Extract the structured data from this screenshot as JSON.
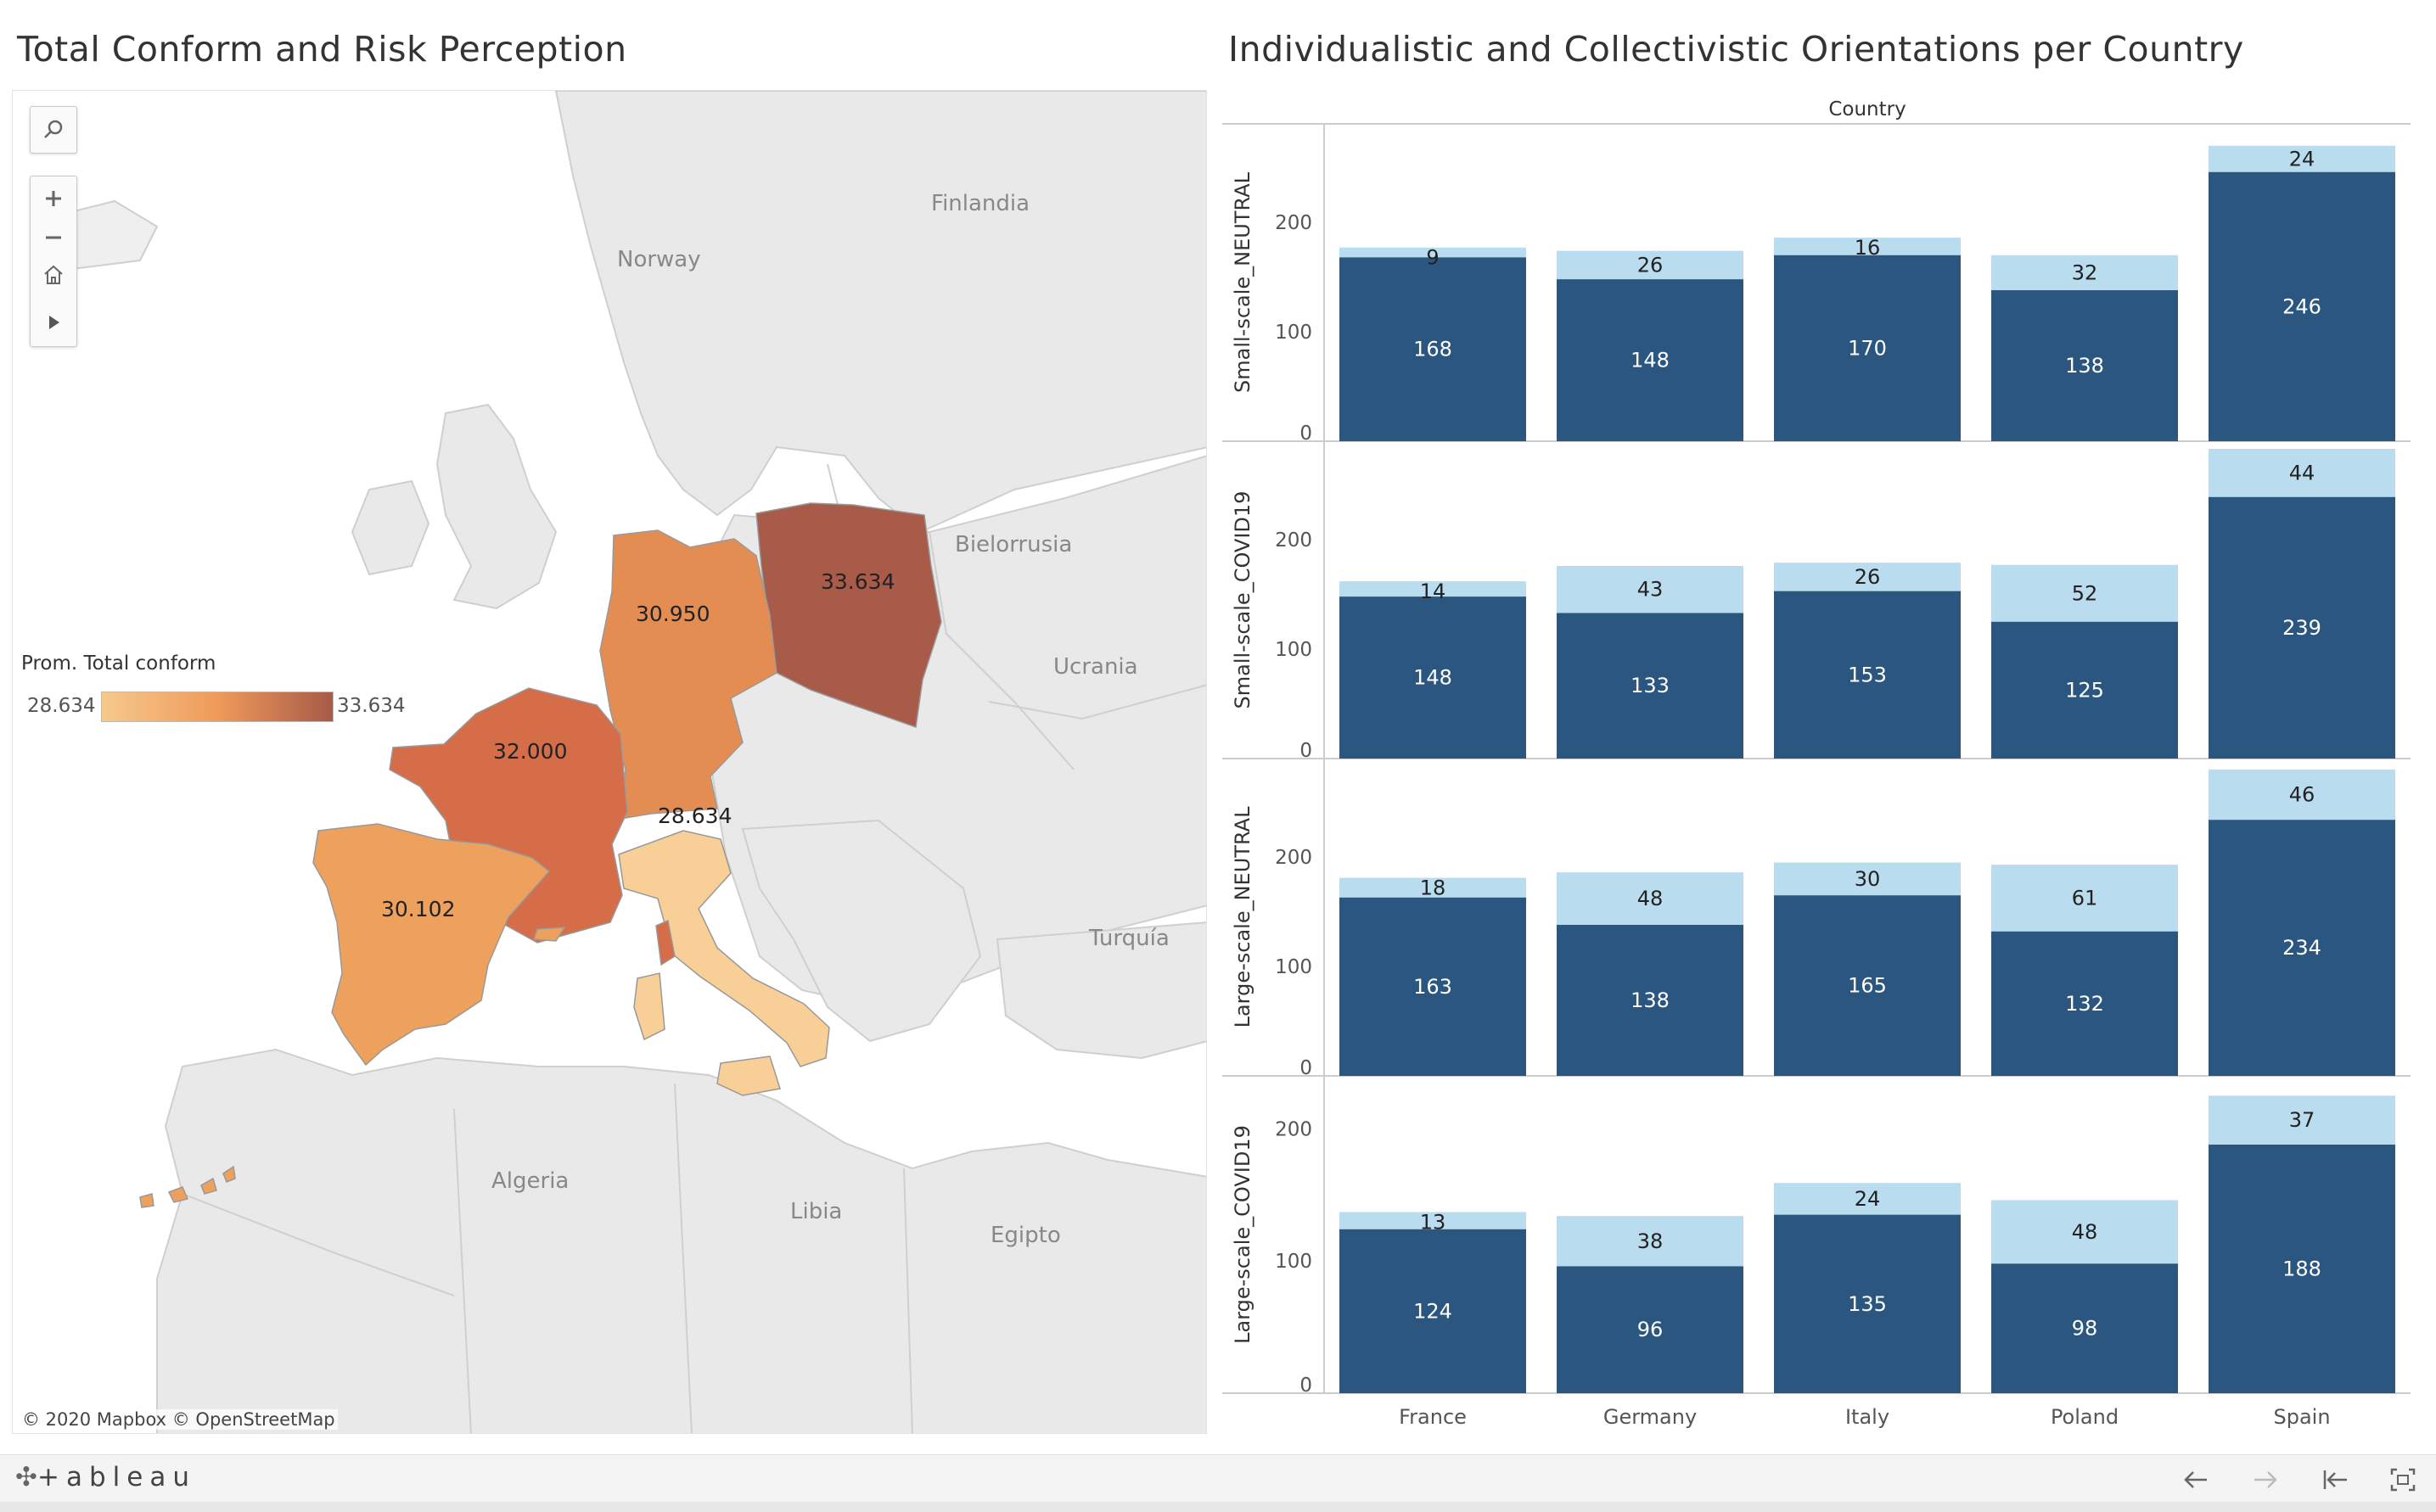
{
  "map": {
    "title": "Total Conform and Risk Perception",
    "legend": {
      "title": "Prom. Total conform",
      "min": "28.634",
      "max": "33.634",
      "color_low": "#f6c98c",
      "color_high": "#a75a48"
    },
    "place_labels": {
      "finland": "Finlandia",
      "norway": "Norway",
      "belarus": "Bielorrusia",
      "ukraine": "Ucrania",
      "turkey": "Turquía",
      "algeria": "Algeria",
      "libya": "Libia",
      "egypt": "Egipto"
    },
    "country_values": [
      {
        "country": "Poland",
        "value": "33.634",
        "color": "#a85b49"
      },
      {
        "country": "Germany",
        "value": "30.950",
        "color": "#e48d53"
      },
      {
        "country": "France",
        "value": "32.000",
        "color": "#d46d48"
      },
      {
        "country": "Italy",
        "value": "28.634",
        "color": "#f9cf98"
      },
      {
        "country": "Spain",
        "value": "30.102",
        "color": "#eea15c"
      }
    ],
    "attribution": "© 2020 Mapbox © OpenStreetMap",
    "tools": {
      "search": "search-icon",
      "zoom_in": "plus-icon",
      "zoom_out": "minus-icon",
      "home": "home-icon",
      "pan": "play-icon"
    }
  },
  "chart": {
    "title": "Individualistic and Collectivistic Orientations per Country"
  },
  "chart_data": {
    "type": "bar",
    "stacked": true,
    "column_header": "Country",
    "categories": [
      "France",
      "Germany",
      "Italy",
      "Poland",
      "Spain"
    ],
    "colors": {
      "base": "#2b5680",
      "top": "#b9dcef"
    },
    "panels": [
      {
        "ylabel": "Small-scale_NEUTRAL",
        "yticks": [
          0,
          100,
          200
        ],
        "ylim": [
          0,
          290
        ],
        "series": [
          {
            "values": [
              168,
              148,
              170,
              138,
              246
            ]
          },
          {
            "values": [
              9,
              26,
              16,
              32,
              24
            ]
          }
        ]
      },
      {
        "ylabel": "Small-scale_COVID19",
        "yticks": [
          0,
          100,
          200
        ],
        "ylim": [
          0,
          290
        ],
        "series": [
          {
            "values": [
              148,
              133,
              153,
              125,
              239
            ]
          },
          {
            "values": [
              14,
              43,
              26,
              52,
              44
            ]
          }
        ]
      },
      {
        "ylabel": "Large-scale_NEUTRAL",
        "yticks": [
          0,
          100,
          200
        ],
        "ylim": [
          0,
          290
        ],
        "series": [
          {
            "values": [
              163,
              138,
              165,
              132,
              234
            ]
          },
          {
            "values": [
              18,
              48,
              30,
              61,
              46
            ]
          }
        ]
      },
      {
        "ylabel": "Large-scale_COVID19",
        "yticks": [
          0,
          100,
          200
        ],
        "ylim": [
          0,
          240
        ],
        "series": [
          {
            "values": [
              124,
              96,
              135,
              98,
              188
            ]
          },
          {
            "values": [
              13,
              38,
              24,
              48,
              37
            ]
          }
        ]
      }
    ]
  },
  "footer": {
    "logo": "+ableau",
    "buttons": {
      "undo": "undo-icon",
      "redo": "redo-icon",
      "revert": "revert-icon",
      "fullscreen": "fullscreen-icon"
    }
  }
}
